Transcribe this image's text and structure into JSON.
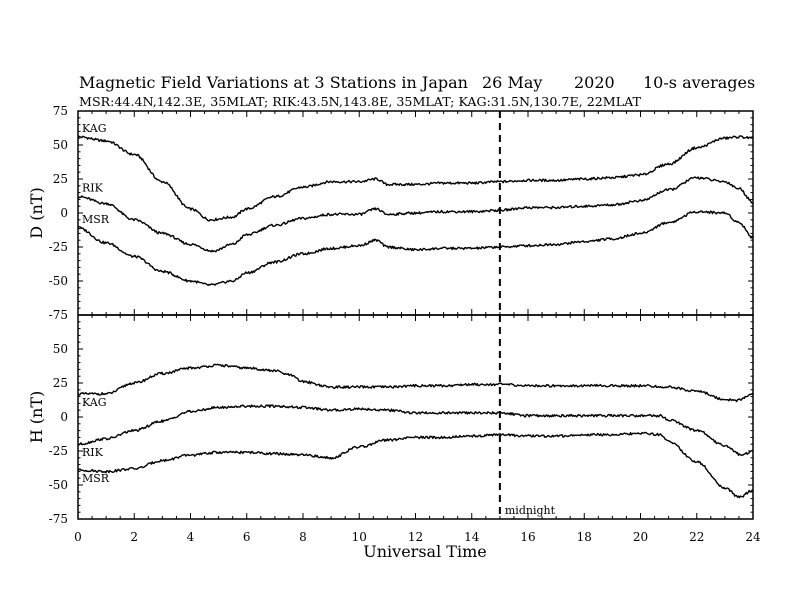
{
  "title": {
    "main": "Magnetic Field Variations at 3 Stations in Japan",
    "date": "26 May",
    "year": "2020",
    "averaging": "10-s averages"
  },
  "subtitle": "MSR:44.4N,142.3E, 35MLAT;  RIK:43.5N,143.8E, 35MLAT;  KAG:31.5N,130.7E, 22MLAT",
  "xlabel": "Universal Time",
  "midnight_label": "midnight",
  "colors": {
    "line": "#000000",
    "background": "#ffffff"
  },
  "chart_data": [
    {
      "type": "line",
      "panel": "top",
      "ylabel": "D (nT)",
      "xlim": [
        0,
        24
      ],
      "ylim": [
        -75,
        75
      ],
      "xticks": [
        0,
        2,
        4,
        6,
        8,
        10,
        12,
        14,
        16,
        18,
        20,
        22,
        24
      ],
      "yticks": [
        -75,
        -50,
        -25,
        0,
        25,
        50,
        75
      ],
      "grid": false,
      "marker_x": 15,
      "series": [
        {
          "name": "KAG",
          "x": [
            0,
            1,
            2,
            3,
            4,
            4.7,
            5.5,
            6,
            7,
            8,
            9,
            10,
            10.6,
            11,
            12,
            13,
            14,
            15,
            16,
            17,
            18,
            19,
            20,
            21,
            22,
            23,
            23.5,
            24
          ],
          "y": [
            56,
            53,
            43,
            23,
            3,
            -5,
            -3,
            3,
            12,
            19,
            23,
            23,
            25,
            21,
            21,
            22,
            22,
            23,
            24,
            24,
            25,
            26,
            28,
            36,
            48,
            55,
            56,
            55
          ]
        },
        {
          "name": "RIK",
          "x": [
            0,
            1,
            2,
            3,
            4,
            4.8,
            5.5,
            6,
            7,
            8,
            9,
            10,
            10.6,
            11,
            12,
            13,
            14,
            15,
            16,
            17,
            18,
            19,
            20,
            21,
            22,
            23,
            23.5,
            24
          ],
          "y": [
            12,
            7,
            -5,
            -15,
            -23,
            -28,
            -23,
            -16,
            -9,
            -4,
            -1,
            -1,
            3,
            -1,
            0,
            1,
            1,
            2,
            4,
            4,
            5,
            6,
            9,
            17,
            26,
            23,
            18,
            8
          ]
        },
        {
          "name": "MSR",
          "x": [
            0,
            1,
            2,
            3,
            4,
            4.7,
            5.5,
            6,
            7,
            8,
            9,
            10,
            10.6,
            11,
            12,
            13,
            14,
            15,
            16,
            17,
            18,
            19,
            20,
            21,
            22,
            23,
            23.5,
            24
          ],
          "y": [
            -11,
            -22,
            -32,
            -43,
            -50,
            -53,
            -50,
            -44,
            -36,
            -30,
            -26,
            -24,
            -20,
            -25,
            -27,
            -26,
            -26,
            -25,
            -24,
            -23,
            -21,
            -19,
            -15,
            -7,
            1,
            0,
            -7,
            -18
          ]
        }
      ]
    },
    {
      "type": "line",
      "panel": "bottom",
      "ylabel": "H (nT)",
      "xlabel": "Universal Time",
      "xlim": [
        0,
        24
      ],
      "ylim": [
        -75,
        75
      ],
      "xticks": [
        0,
        2,
        4,
        6,
        8,
        10,
        12,
        14,
        16,
        18,
        20,
        22,
        24
      ],
      "yticks": [
        -75,
        -50,
        -25,
        0,
        25,
        50,
        75
      ],
      "grid": false,
      "marker_x": 15,
      "series": [
        {
          "name": "KAG",
          "x": [
            0,
            1,
            2,
            3,
            4,
            5,
            6,
            7,
            7.5,
            8,
            9,
            10,
            11,
            12,
            13,
            14,
            15,
            16,
            17,
            18,
            19,
            20,
            21,
            22,
            23,
            23.4,
            24
          ],
          "y": [
            17,
            17,
            25,
            32,
            36,
            38,
            36,
            34,
            31,
            26,
            22,
            22,
            22,
            23,
            23,
            24,
            24,
            23,
            23,
            23,
            23,
            23,
            22,
            19,
            13,
            12,
            17
          ]
        },
        {
          "name": "RIK",
          "x": [
            0,
            1,
            2,
            3,
            4,
            5,
            6,
            7,
            8,
            9,
            10,
            11,
            12,
            13,
            14,
            15,
            16,
            17,
            18,
            19,
            20,
            20.7,
            21,
            22,
            23,
            23.6,
            24
          ],
          "y": [
            -20,
            -16,
            -10,
            -3,
            4,
            7,
            8,
            8,
            7,
            5,
            6,
            5,
            3,
            3,
            3,
            3,
            1,
            1,
            1,
            1,
            1,
            1,
            -2,
            -10,
            -21,
            -28,
            -25
          ]
        },
        {
          "name": "MSR",
          "x": [
            0,
            1,
            2,
            3,
            4,
            5,
            6,
            7,
            8,
            9,
            10,
            11,
            12,
            13,
            14,
            15,
            16,
            17,
            18,
            19,
            20,
            20.7,
            21,
            22,
            23,
            23.5,
            24
          ],
          "y": [
            -39,
            -40,
            -38,
            -32,
            -28,
            -26,
            -26,
            -27,
            -28,
            -30,
            -22,
            -17,
            -15,
            -15,
            -14,
            -13,
            -14,
            -14,
            -13,
            -13,
            -12,
            -13,
            -18,
            -33,
            -52,
            -59,
            -54
          ]
        }
      ]
    }
  ]
}
